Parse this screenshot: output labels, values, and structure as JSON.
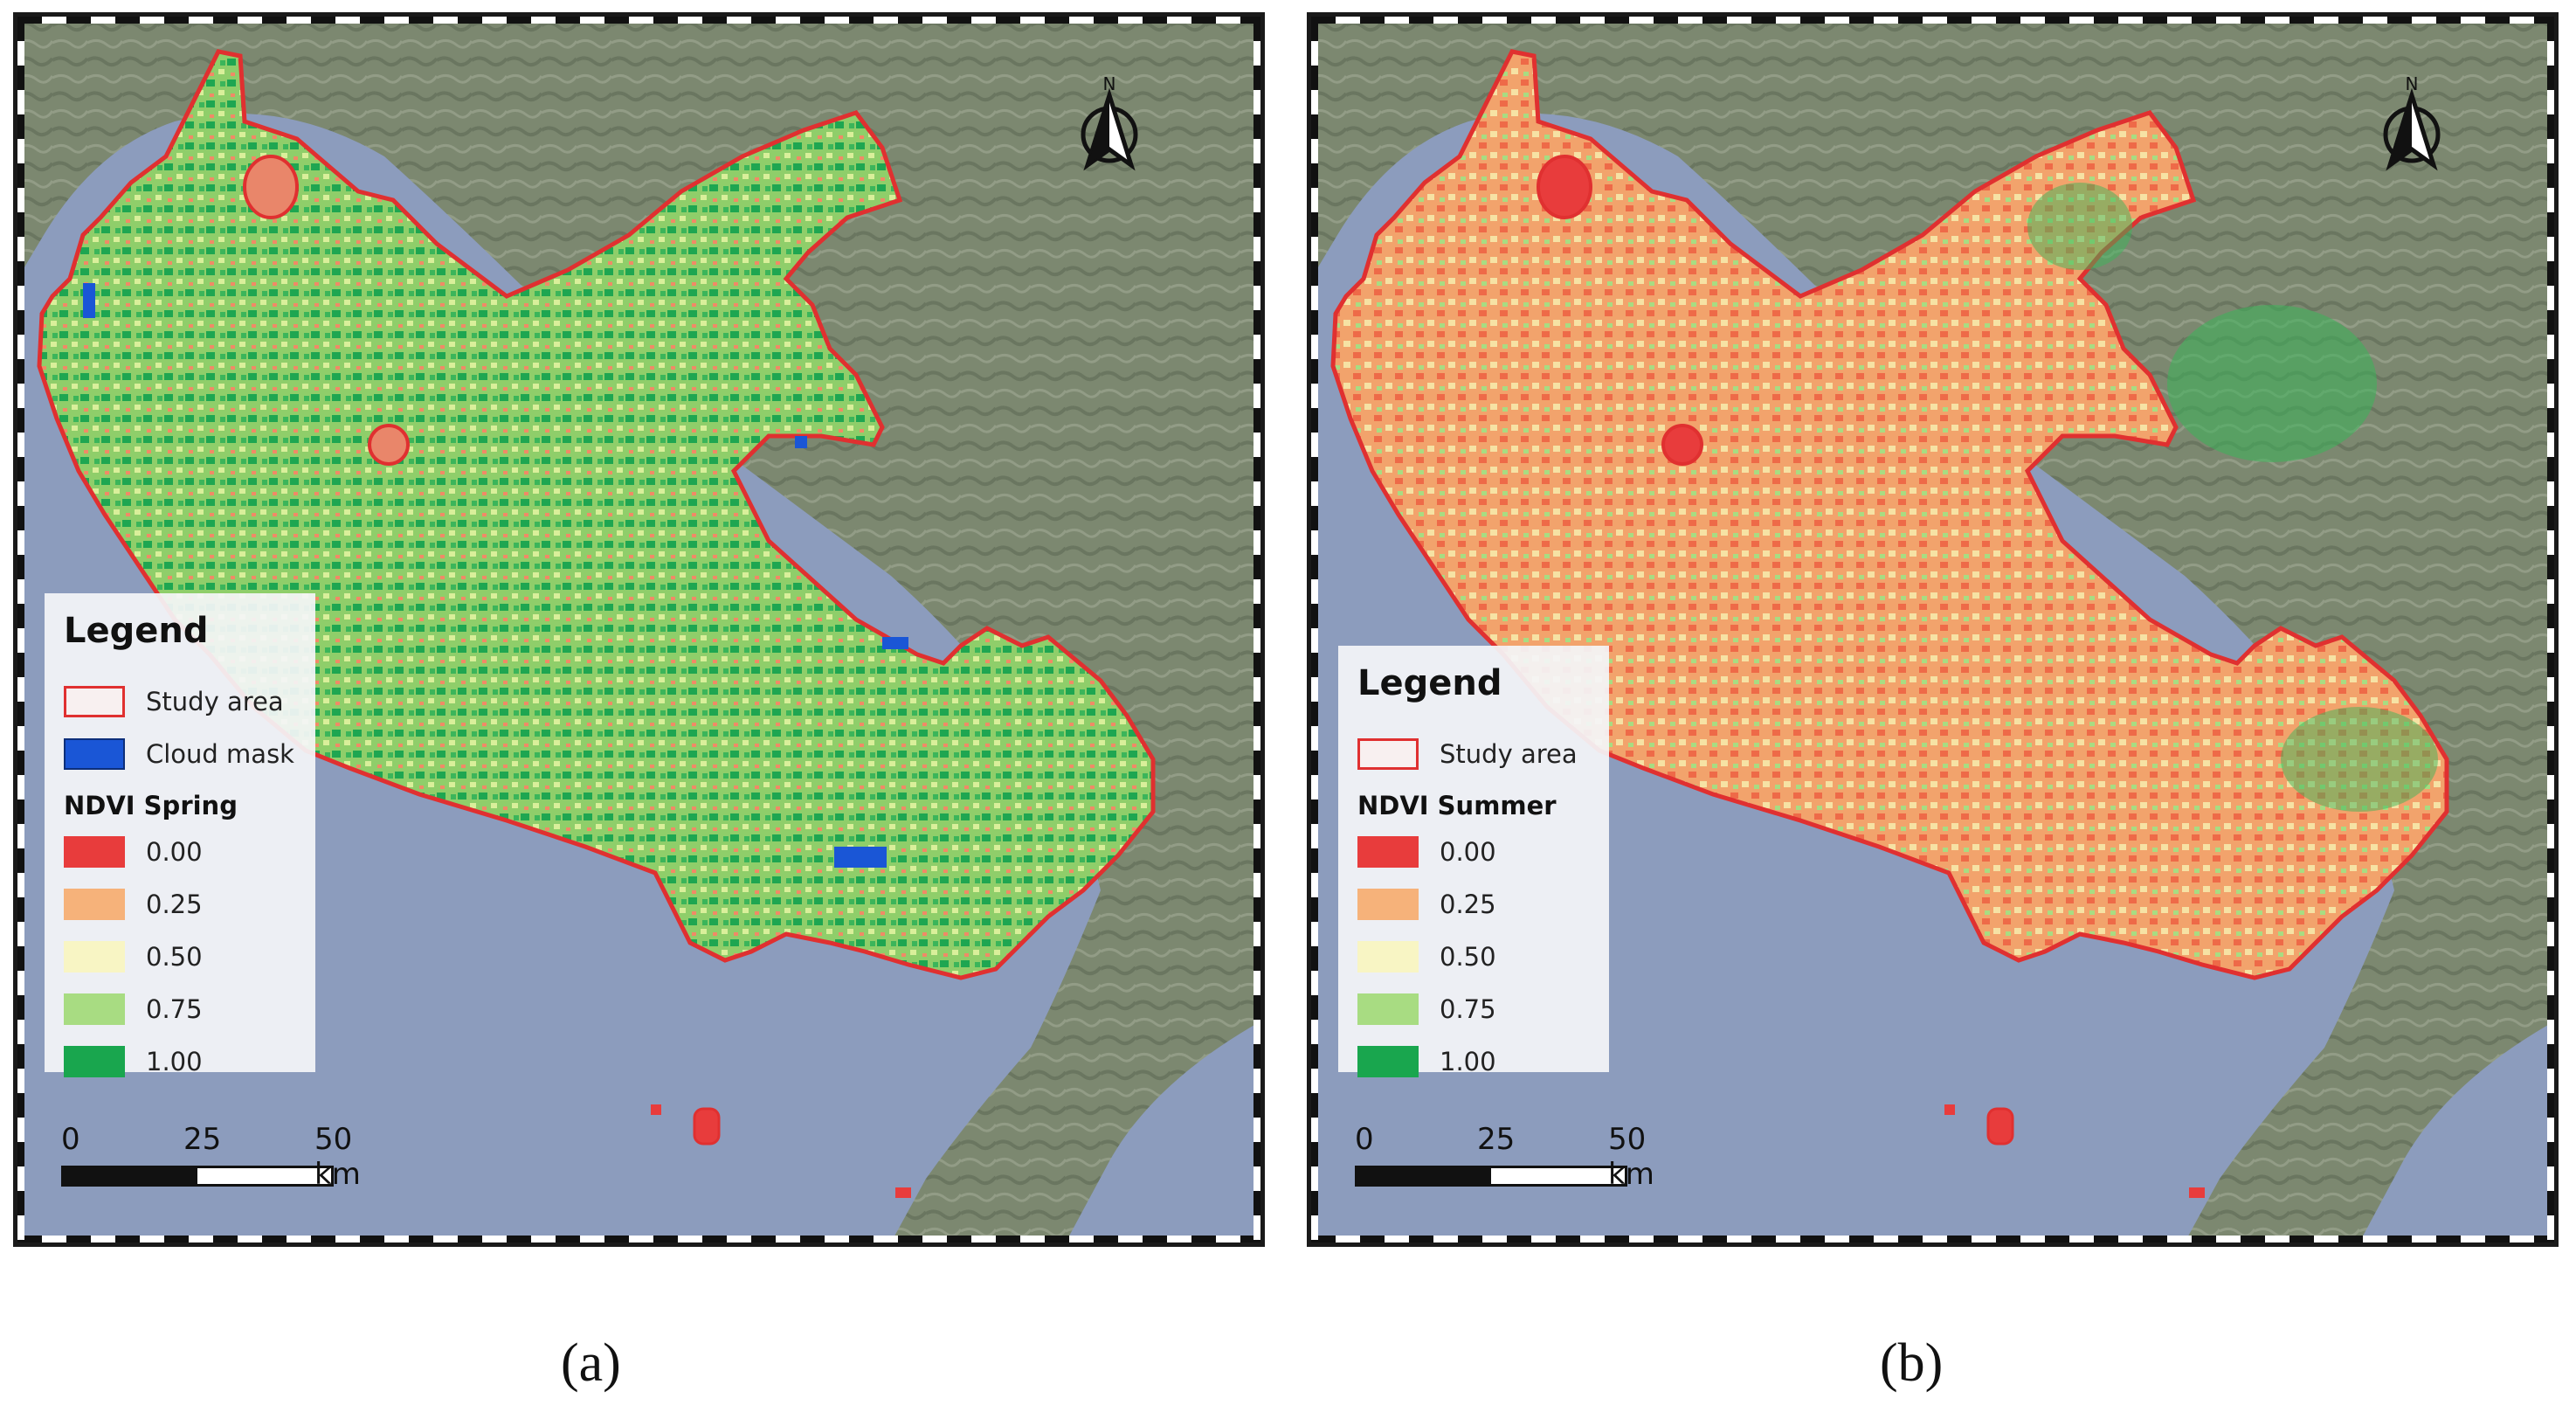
{
  "colors": {
    "ndvi_0_00": "#e83c3c",
    "ndvi_0_25": "#f6b27a",
    "ndvi_0_50": "#f8f5c4",
    "ndvi_0_75": "#a8dc82",
    "ndvi_1_00": "#19a64e",
    "study_area_outline": "#e03030",
    "cloud_mask": "#1a56d6",
    "sea": "#8c9cbd",
    "land": "#7a866c"
  },
  "north_arrow": {
    "label": "N",
    "icon": "north-arrow-icon"
  },
  "panels": [
    {
      "caption": "(a)",
      "legend": {
        "title": "Legend",
        "items": [
          {
            "label": "Study area",
            "type": "outline"
          },
          {
            "label": "Cloud mask",
            "type": "fill"
          }
        ],
        "ndvi_title": "NDVI Spring",
        "ndvi_classes": [
          "0.00",
          "0.25",
          "0.50",
          "0.75",
          "1.00"
        ]
      },
      "scale": {
        "labels": [
          "0",
          "25",
          "50 km"
        ]
      }
    },
    {
      "caption": "(b)",
      "legend": {
        "title": "Legend",
        "items": [
          {
            "label": "Study area",
            "type": "outline"
          }
        ],
        "ndvi_title": "NDVI Summer",
        "ndvi_classes": [
          "0.00",
          "0.25",
          "0.50",
          "0.75",
          "1.00"
        ]
      },
      "scale": {
        "labels": [
          "0",
          "25",
          "50 km"
        ]
      }
    }
  ]
}
